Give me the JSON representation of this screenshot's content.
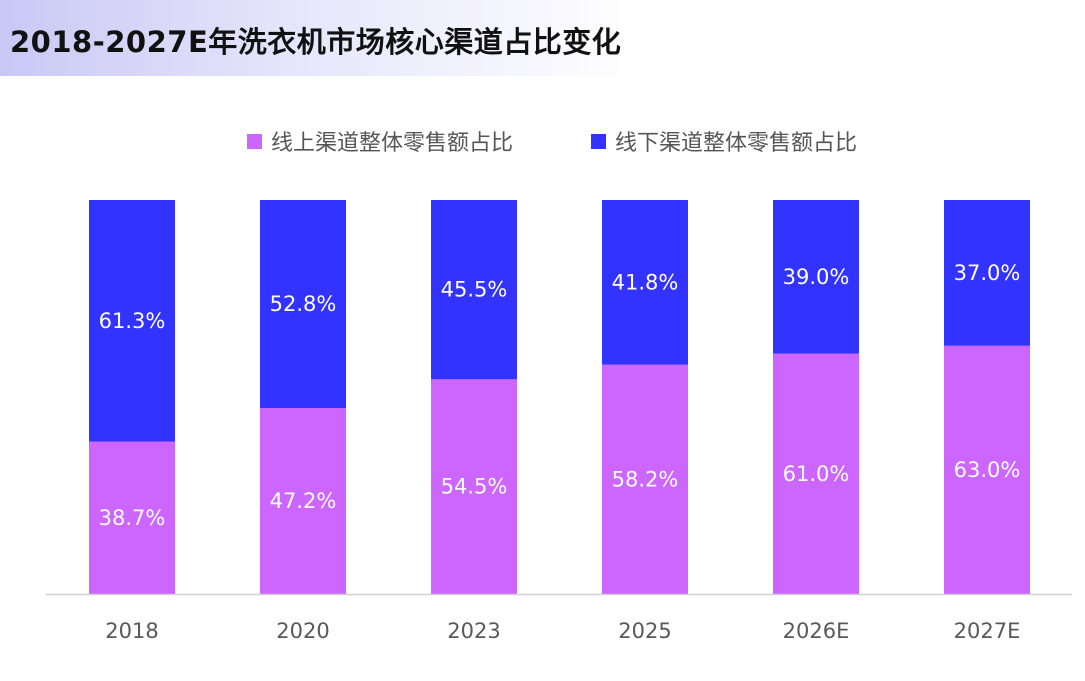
{
  "header": {
    "title": "2018-2027E年洗衣机市场核心渠道占比变化"
  },
  "chart_data": {
    "type": "bar",
    "stacked": true,
    "percent_stacked": true,
    "categories": [
      "2018",
      "2020",
      "2023",
      "2025",
      "2026E",
      "2027E"
    ],
    "series": [
      {
        "name": "线上渠道整体零售额占比",
        "values": [
          38.7,
          47.2,
          54.5,
          58.2,
          61.0,
          63.0
        ],
        "labels": [
          "38.7%",
          "47.2%",
          "54.5%",
          "58.2%",
          "61.0%",
          "63.0%"
        ],
        "color": "#cc66ff"
      },
      {
        "name": "线下渠道整体零售额占比",
        "values": [
          61.3,
          52.8,
          45.5,
          41.8,
          39.0,
          37.0
        ],
        "labels": [
          "61.3%",
          "52.8%",
          "45.5%",
          "41.8%",
          "39.0%",
          "37.0%"
        ],
        "color": "#3333ff"
      }
    ],
    "ylim": [
      0,
      100
    ],
    "legend_position": "top",
    "grid": false
  }
}
